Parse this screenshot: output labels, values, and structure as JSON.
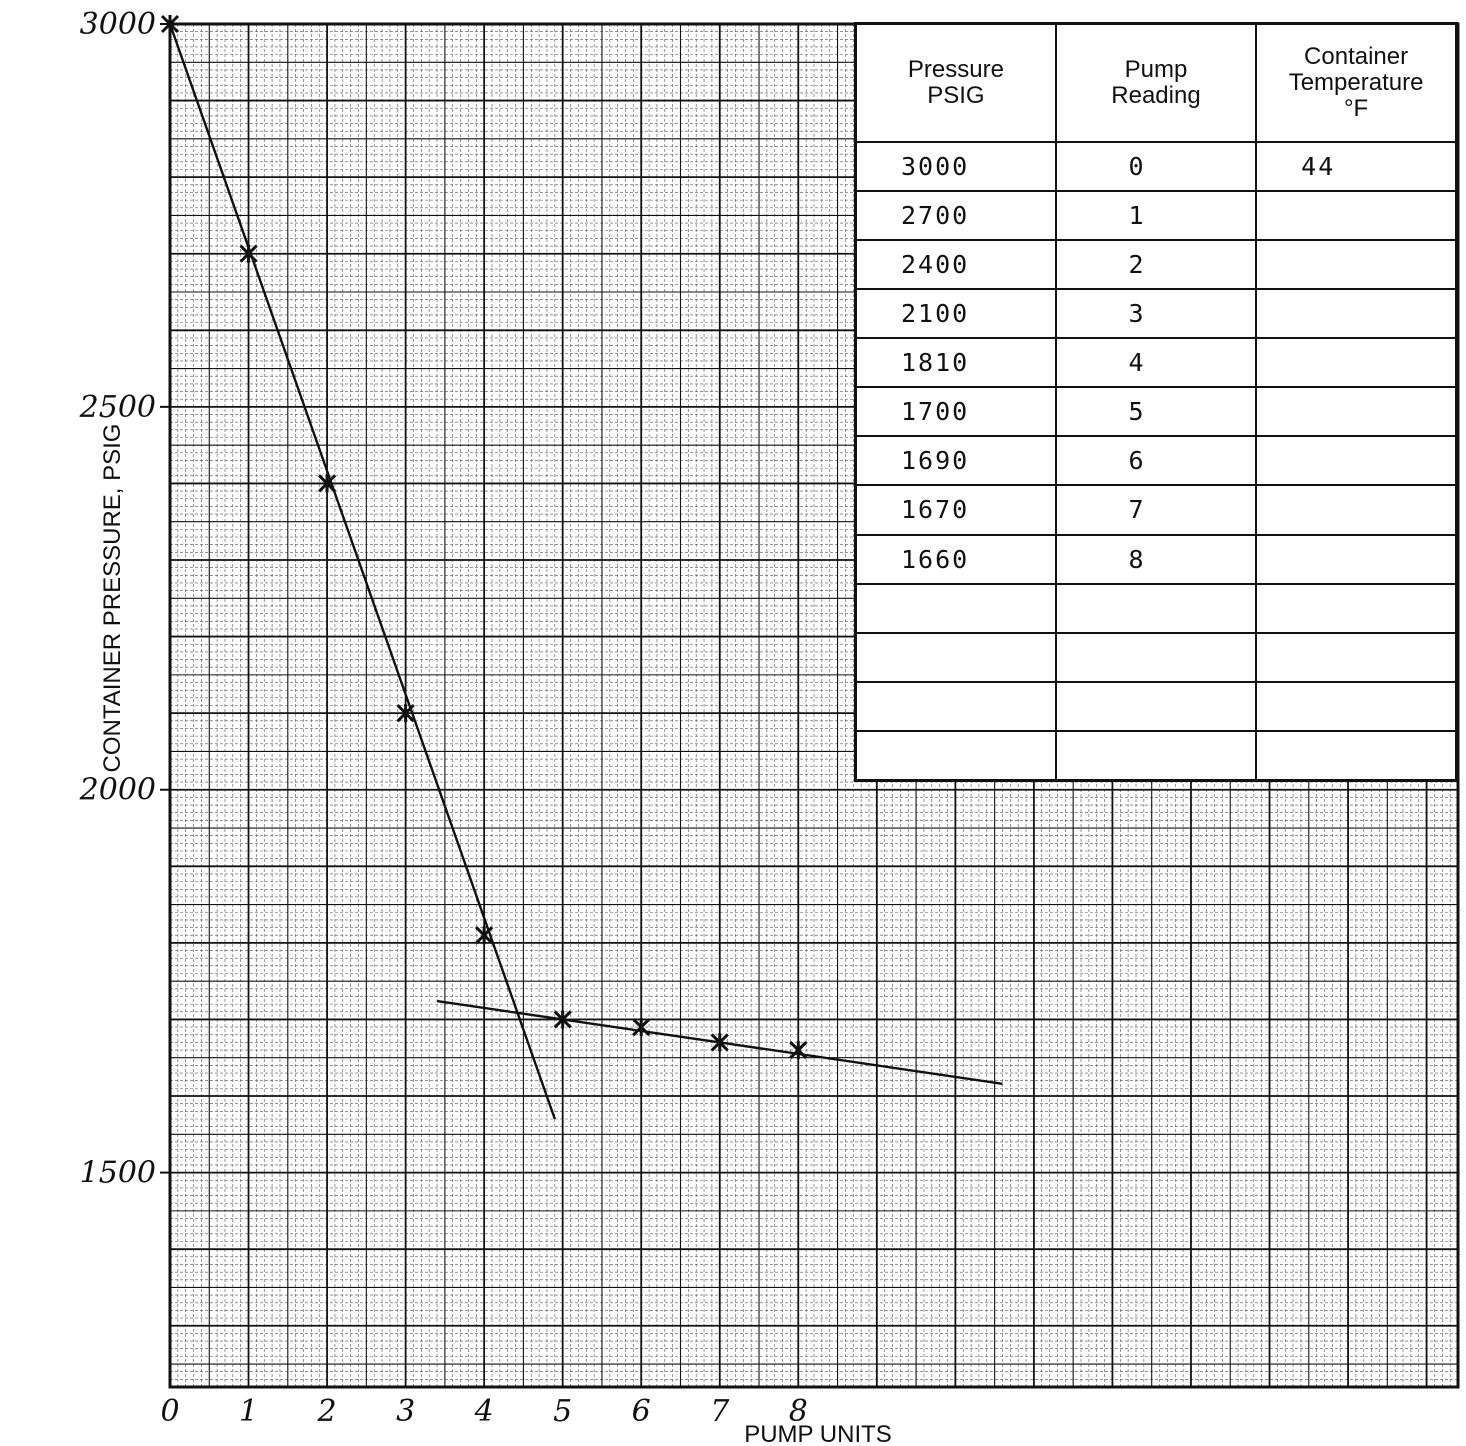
{
  "chart_data": {
    "type": "line",
    "xlabel": "PUMP UNITS",
    "ylabel": "CONTAINER PRESSURE, PSIG",
    "xlim": [
      0,
      16.4
    ],
    "ylim": [
      1220,
      3000
    ],
    "x_ticks": [
      "0",
      "1",
      "2",
      "3",
      "4",
      "5",
      "6",
      "7",
      "8"
    ],
    "y_ticks": [
      {
        "value": 3000,
        "label": "3000"
      },
      {
        "value": 2500,
        "label": "2500"
      },
      {
        "value": 2000,
        "label": "2000"
      },
      {
        "value": 1500,
        "label": "1500"
      }
    ],
    "grid": true,
    "points": [
      {
        "x": 0,
        "y": 3000
      },
      {
        "x": 1,
        "y": 2700
      },
      {
        "x": 2,
        "y": 2400
      },
      {
        "x": 3,
        "y": 2100
      },
      {
        "x": 4,
        "y": 1810
      },
      {
        "x": 5,
        "y": 1700
      },
      {
        "x": 6,
        "y": 1690
      },
      {
        "x": 7,
        "y": 1670
      },
      {
        "x": 8,
        "y": 1660
      }
    ],
    "fit_lines": [
      {
        "x": [
          0,
          4.9
        ],
        "y": [
          3000,
          1570
        ]
      },
      {
        "x": [
          3.4,
          10.6
        ],
        "y": [
          1724,
          1616
        ]
      }
    ]
  },
  "table": {
    "headers": [
      [
        "Pressure",
        "PSIG"
      ],
      [
        "Pump",
        "Reading"
      ],
      [
        "Container",
        "Temperature",
        "°F"
      ]
    ],
    "rows": [
      [
        "3000",
        "0",
        "44"
      ],
      [
        "2700",
        "1",
        ""
      ],
      [
        "2400",
        "2",
        ""
      ],
      [
        "2100",
        "3",
        ""
      ],
      [
        "1810",
        "4",
        ""
      ],
      [
        "1700",
        "5",
        ""
      ],
      [
        "1690",
        "6",
        ""
      ],
      [
        "1670",
        "7",
        ""
      ],
      [
        "1660",
        "8",
        ""
      ],
      [
        "",
        "",
        ""
      ],
      [
        "",
        "",
        ""
      ],
      [
        "",
        "",
        ""
      ],
      [
        "",
        "",
        ""
      ]
    ]
  },
  "colors": {
    "ink": "#111111",
    "grid_minor": "#555555",
    "grid_major": "#111111",
    "paper": "#ffffff"
  }
}
